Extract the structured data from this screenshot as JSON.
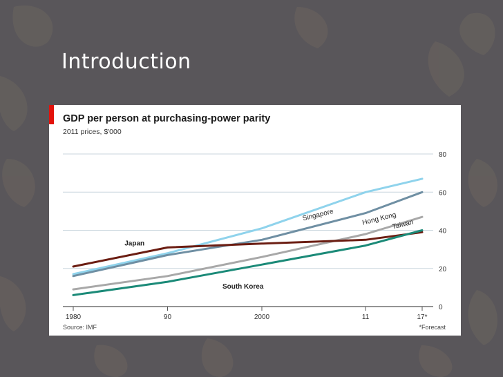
{
  "slide": {
    "title": "Introduction"
  },
  "chart_data": {
    "type": "line",
    "title": "GDP per person at purchasing-power parity",
    "subtitle": "2011 prices, $'000",
    "source": "Source: IMF",
    "footnote": "*Forecast",
    "x_tick_labels": [
      "1980",
      "90",
      "2000",
      "11",
      "17*"
    ],
    "x_tick_values": [
      1980,
      1990,
      2000,
      2011,
      2017
    ],
    "y_tick_values": [
      0,
      20,
      40,
      60,
      80
    ],
    "xlim": [
      1980,
      2017
    ],
    "ylim": [
      0,
      80
    ],
    "grid": true,
    "y_axis_position": "right",
    "series": [
      {
        "name": "Singapore",
        "color": "#8fd3ec",
        "points": [
          [
            1980,
            17
          ],
          [
            1990,
            28
          ],
          [
            2000,
            41
          ],
          [
            2011,
            60
          ],
          [
            2017,
            67
          ]
        ]
      },
      {
        "name": "Hong Kong",
        "color": "#6f8fa3",
        "points": [
          [
            1980,
            16
          ],
          [
            1990,
            27
          ],
          [
            2000,
            35
          ],
          [
            2011,
            49
          ],
          [
            2017,
            60
          ]
        ]
      },
      {
        "name": "Taiwan",
        "color": "#a8a8a8",
        "points": [
          [
            1980,
            9
          ],
          [
            1990,
            16
          ],
          [
            2000,
            26
          ],
          [
            2011,
            38
          ],
          [
            2017,
            47
          ]
        ]
      },
      {
        "name": "Japan",
        "color": "#6b1d12",
        "points": [
          [
            1980,
            21
          ],
          [
            1990,
            31
          ],
          [
            2000,
            33
          ],
          [
            2011,
            35
          ],
          [
            2017,
            39
          ]
        ]
      },
      {
        "name": "South Korea",
        "color": "#1b8a78",
        "points": [
          [
            1980,
            6
          ],
          [
            1990,
            13
          ],
          [
            2000,
            22
          ],
          [
            2011,
            32
          ],
          [
            2017,
            40
          ]
        ]
      }
    ],
    "labels": [
      {
        "text": "Singapore",
        "series": "Singapore",
        "x": 2006,
        "y": 47,
        "rotate": -14
      },
      {
        "text": "Hong Kong",
        "series": "Hong Kong",
        "x": 2012.5,
        "y": 45,
        "rotate": -14
      },
      {
        "text": "Taiwan",
        "series": "Taiwan",
        "x": 2015,
        "y": 42,
        "rotate": -14
      },
      {
        "text": "Japan",
        "series": "Japan",
        "x": 1986.5,
        "y": 32,
        "rotate": 0
      },
      {
        "text": "South Korea",
        "series": "South Korea",
        "x": 1998,
        "y": 9.5,
        "rotate": 0
      }
    ]
  }
}
